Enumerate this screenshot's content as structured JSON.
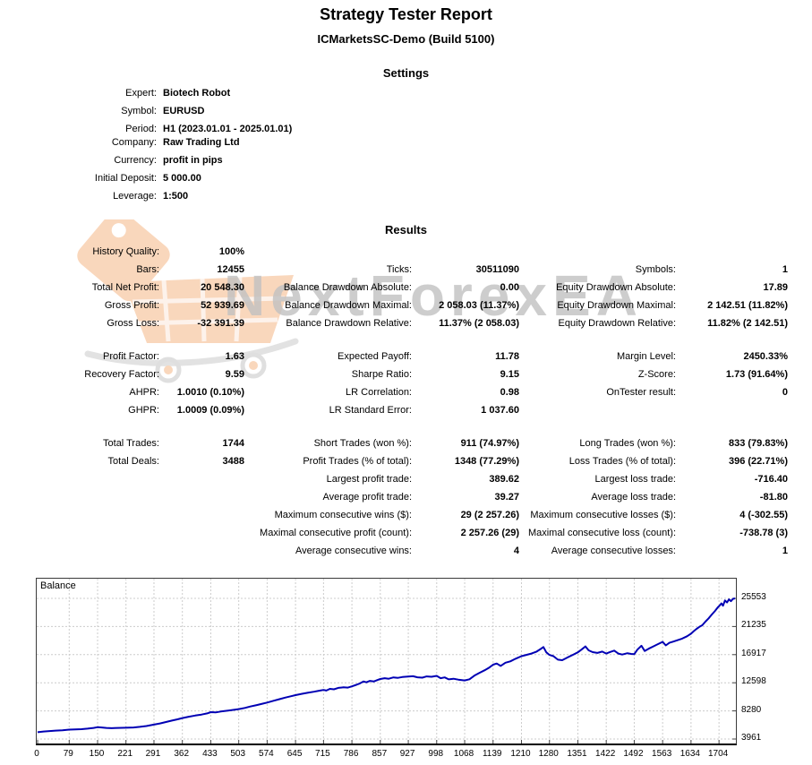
{
  "report": {
    "title": "Strategy Tester Report",
    "subtitle": "ICMarketsSC-Demo (Build 5100)"
  },
  "settings": {
    "heading": "Settings",
    "rows": [
      {
        "label": "Expert:",
        "value": "Biotech Robot"
      },
      {
        "label": "Symbol:",
        "value": "EURUSD"
      },
      {
        "label": "Period:",
        "value": "H1 (2023.01.01 - 2025.01.01)"
      },
      {
        "label": "Company:",
        "value": "Raw Trading Ltd"
      },
      {
        "label": "Currency:",
        "value": "profit in pips"
      },
      {
        "label": "Initial Deposit:",
        "value": "5 000.00"
      },
      {
        "label": "Leverage:",
        "value": "1:500"
      }
    ]
  },
  "results": {
    "heading": "Results",
    "blocks": [
      [
        [
          {
            "l": "History Quality:",
            "v": "100%"
          },
          null,
          null
        ],
        [
          {
            "l": "Bars:",
            "v": "12455"
          },
          {
            "l": "Ticks:",
            "v": "30511090"
          },
          {
            "l": "Symbols:",
            "v": "1"
          }
        ],
        [
          {
            "l": "Total Net Profit:",
            "v": "20 548.30"
          },
          {
            "l": "Balance Drawdown Absolute:",
            "v": "0.00"
          },
          {
            "l": "Equity Drawdown Absolute:",
            "v": "17.89"
          }
        ],
        [
          {
            "l": "Gross Profit:",
            "v": "52 939.69"
          },
          {
            "l": "Balance Drawdown Maximal:",
            "v": "2 058.03 (11.37%)"
          },
          {
            "l": "Equity Drawdown Maximal:",
            "v": "2 142.51 (11.82%)"
          }
        ],
        [
          {
            "l": "Gross Loss:",
            "v": "-32 391.39"
          },
          {
            "l": "Balance Drawdown Relative:",
            "v": "11.37% (2 058.03)"
          },
          {
            "l": "Equity Drawdown Relative:",
            "v": "11.82% (2 142.51)"
          }
        ]
      ],
      [
        [
          {
            "l": "Profit Factor:",
            "v": "1.63"
          },
          {
            "l": "Expected Payoff:",
            "v": "11.78"
          },
          {
            "l": "Margin Level:",
            "v": "2450.33%"
          }
        ],
        [
          {
            "l": "Recovery Factor:",
            "v": "9.59"
          },
          {
            "l": "Sharpe Ratio:",
            "v": "9.15"
          },
          {
            "l": "Z-Score:",
            "v": "1.73 (91.64%)"
          }
        ],
        [
          {
            "l": "AHPR:",
            "v": "1.0010 (0.10%)"
          },
          {
            "l": "LR Correlation:",
            "v": "0.98"
          },
          {
            "l": "OnTester result:",
            "v": "0"
          }
        ],
        [
          {
            "l": "GHPR:",
            "v": "1.0009 (0.09%)"
          },
          {
            "l": "LR Standard Error:",
            "v": "1 037.60"
          },
          null
        ]
      ],
      [
        [
          {
            "l": "Total Trades:",
            "v": "1744"
          },
          {
            "l": "Short Trades (won %):",
            "v": "911 (74.97%)"
          },
          {
            "l": "Long Trades (won %):",
            "v": "833 (79.83%)"
          }
        ],
        [
          {
            "l": "Total Deals:",
            "v": "3488"
          },
          {
            "l": "Profit Trades (% of total):",
            "v": "1348 (77.29%)"
          },
          {
            "l": "Loss Trades (% of total):",
            "v": "396 (22.71%)"
          }
        ],
        [
          null,
          {
            "l": "Largest profit trade:",
            "v": "389.62"
          },
          {
            "l": "Largest loss trade:",
            "v": "-716.40"
          }
        ],
        [
          null,
          {
            "l": "Average profit trade:",
            "v": "39.27"
          },
          {
            "l": "Average loss trade:",
            "v": "-81.80"
          }
        ],
        [
          null,
          {
            "l": "Maximum consecutive wins ($):",
            "v": "29 (2 257.26)"
          },
          {
            "l": "Maximum consecutive losses ($):",
            "v": "4 (-302.55)"
          }
        ],
        [
          null,
          {
            "l": "Maximal consecutive profit (count):",
            "v": "2 257.26 (29)"
          },
          {
            "l": "Maximal consecutive loss (count):",
            "v": "-738.78 (3)"
          }
        ],
        [
          null,
          {
            "l": "Average consecutive wins:",
            "v": "4"
          },
          {
            "l": "Average consecutive losses:",
            "v": "1"
          }
        ]
      ]
    ]
  },
  "watermark": {
    "text": "NextForexEA",
    "text_color": "#c1c1c1",
    "icon": "shopping-cart-icon",
    "icon_color": "#f5b07c"
  },
  "chart_data": {
    "type": "line",
    "title": "Balance",
    "legend_position": "top-left",
    "grid": true,
    "line_color": "#0000b4",
    "grid_color": "#cccccc",
    "xlim": [
      0,
      1744
    ],
    "ylim": [
      3961,
      25553
    ],
    "x_ticks": [
      0,
      79,
      150,
      221,
      291,
      362,
      433,
      503,
      574,
      645,
      715,
      786,
      857,
      927,
      998,
      1068,
      1139,
      1210,
      1280,
      1351,
      1422,
      1492,
      1563,
      1634,
      1704
    ],
    "y_ticks": [
      25553,
      21235,
      16917,
      12598,
      8280,
      3961
    ],
    "series": [
      {
        "name": "Balance",
        "points": [
          [
            0,
            5000
          ],
          [
            15,
            5120
          ],
          [
            30,
            5190
          ],
          [
            45,
            5260
          ],
          [
            62,
            5310
          ],
          [
            79,
            5400
          ],
          [
            95,
            5440
          ],
          [
            110,
            5480
          ],
          [
            125,
            5550
          ],
          [
            140,
            5660
          ],
          [
            150,
            5770
          ],
          [
            160,
            5730
          ],
          [
            172,
            5660
          ],
          [
            185,
            5630
          ],
          [
            200,
            5670
          ],
          [
            221,
            5690
          ],
          [
            240,
            5740
          ],
          [
            256,
            5830
          ],
          [
            272,
            5960
          ],
          [
            291,
            6180
          ],
          [
            306,
            6350
          ],
          [
            321,
            6570
          ],
          [
            336,
            6790
          ],
          [
            350,
            6990
          ],
          [
            362,
            7180
          ],
          [
            378,
            7380
          ],
          [
            394,
            7560
          ],
          [
            410,
            7720
          ],
          [
            424,
            7900
          ],
          [
            433,
            8090
          ],
          [
            445,
            8040
          ],
          [
            458,
            8180
          ],
          [
            472,
            8300
          ],
          [
            487,
            8420
          ],
          [
            503,
            8560
          ],
          [
            518,
            8740
          ],
          [
            532,
            8950
          ],
          [
            548,
            9170
          ],
          [
            562,
            9380
          ],
          [
            574,
            9560
          ],
          [
            590,
            9830
          ],
          [
            605,
            10080
          ],
          [
            620,
            10330
          ],
          [
            634,
            10540
          ],
          [
            645,
            10700
          ],
          [
            660,
            10890
          ],
          [
            675,
            11060
          ],
          [
            691,
            11220
          ],
          [
            705,
            11390
          ],
          [
            715,
            11500
          ],
          [
            722,
            11400
          ],
          [
            731,
            11660
          ],
          [
            741,
            11600
          ],
          [
            752,
            11820
          ],
          [
            765,
            11900
          ],
          [
            776,
            11860
          ],
          [
            786,
            12050
          ],
          [
            797,
            12280
          ],
          [
            806,
            12500
          ],
          [
            815,
            12800
          ],
          [
            822,
            12660
          ],
          [
            831,
            12880
          ],
          [
            841,
            12800
          ],
          [
            851,
            13050
          ],
          [
            857,
            13180
          ],
          [
            868,
            13300
          ],
          [
            878,
            13220
          ],
          [
            890,
            13420
          ],
          [
            901,
            13360
          ],
          [
            912,
            13480
          ],
          [
            927,
            13540
          ],
          [
            939,
            13600
          ],
          [
            950,
            13440
          ],
          [
            962,
            13380
          ],
          [
            973,
            13580
          ],
          [
            985,
            13520
          ],
          [
            998,
            13660
          ],
          [
            1008,
            13300
          ],
          [
            1018,
            13420
          ],
          [
            1028,
            13120
          ],
          [
            1040,
            13220
          ],
          [
            1052,
            13080
          ],
          [
            1068,
            12960
          ],
          [
            1080,
            13140
          ],
          [
            1092,
            13680
          ],
          [
            1105,
            14120
          ],
          [
            1118,
            14520
          ],
          [
            1130,
            14950
          ],
          [
            1139,
            15380
          ],
          [
            1148,
            15560
          ],
          [
            1158,
            15180
          ],
          [
            1170,
            15680
          ],
          [
            1182,
            15880
          ],
          [
            1195,
            16280
          ],
          [
            1210,
            16680
          ],
          [
            1222,
            16880
          ],
          [
            1235,
            17080
          ],
          [
            1248,
            17380
          ],
          [
            1258,
            17780
          ],
          [
            1265,
            18080
          ],
          [
            1272,
            17280
          ],
          [
            1280,
            16880
          ],
          [
            1290,
            16680
          ],
          [
            1301,
            16150
          ],
          [
            1312,
            16060
          ],
          [
            1325,
            16480
          ],
          [
            1338,
            16880
          ],
          [
            1351,
            17280
          ],
          [
            1360,
            17680
          ],
          [
            1370,
            18180
          ],
          [
            1378,
            17580
          ],
          [
            1388,
            17300
          ],
          [
            1400,
            17180
          ],
          [
            1412,
            17380
          ],
          [
            1422,
            17080
          ],
          [
            1432,
            17330
          ],
          [
            1442,
            17530
          ],
          [
            1452,
            17080
          ],
          [
            1462,
            16930
          ],
          [
            1475,
            17130
          ],
          [
            1484,
            17030
          ],
          [
            1492,
            16980
          ],
          [
            1500,
            17680
          ],
          [
            1510,
            18280
          ],
          [
            1518,
            17480
          ],
          [
            1528,
            17830
          ],
          [
            1538,
            18130
          ],
          [
            1550,
            18480
          ],
          [
            1563,
            18880
          ],
          [
            1571,
            18330
          ],
          [
            1580,
            18730
          ],
          [
            1590,
            18930
          ],
          [
            1600,
            19130
          ],
          [
            1612,
            19380
          ],
          [
            1624,
            19730
          ],
          [
            1634,
            20130
          ],
          [
            1641,
            20530
          ],
          [
            1648,
            20880
          ],
          [
            1655,
            21180
          ],
          [
            1662,
            21430
          ],
          [
            1670,
            21980
          ],
          [
            1678,
            22480
          ],
          [
            1686,
            23080
          ],
          [
            1694,
            23630
          ],
          [
            1701,
            24180
          ],
          [
            1706,
            24480
          ],
          [
            1710,
            24780
          ],
          [
            1714,
            24430
          ],
          [
            1719,
            25230
          ],
          [
            1724,
            24930
          ],
          [
            1729,
            25400
          ],
          [
            1734,
            25130
          ],
          [
            1739,
            25480
          ],
          [
            1744,
            25548
          ]
        ]
      }
    ]
  }
}
